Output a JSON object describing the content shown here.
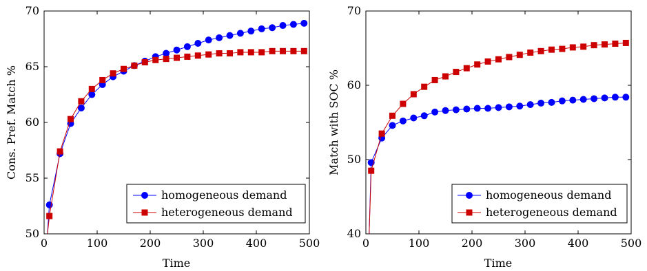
{
  "chart_data": [
    {
      "type": "line",
      "xlabel": "Time",
      "ylabel": "Cons. Pref. Match %",
      "xlim": [
        0,
        500
      ],
      "ylim": [
        50,
        70
      ],
      "xticks": [
        "0",
        "100",
        "200",
        "300",
        "400",
        "500"
      ],
      "yticks": [
        "50",
        "55",
        "60",
        "65",
        "70"
      ],
      "grid": false,
      "legend_position": "bottom-right",
      "series": [
        {
          "name": "homogeneous demand",
          "color": "#0000ff",
          "marker": "circle",
          "x": [
            10,
            30,
            50,
            70,
            90,
            110,
            130,
            150,
            170,
            190,
            210,
            230,
            250,
            270,
            290,
            310,
            330,
            350,
            370,
            390,
            410,
            430,
            450,
            470,
            490
          ],
          "y": [
            52.6,
            57.2,
            59.9,
            61.3,
            62.5,
            63.4,
            64.1,
            64.6,
            65.1,
            65.5,
            65.9,
            66.2,
            66.5,
            66.8,
            67.1,
            67.4,
            67.6,
            67.8,
            68.0,
            68.2,
            68.4,
            68.5,
            68.7,
            68.8,
            68.9
          ]
        },
        {
          "name": "heterogeneous demand",
          "color": "#cc0000",
          "marker": "square",
          "x": [
            10,
            30,
            50,
            70,
            90,
            110,
            130,
            150,
            170,
            190,
            210,
            230,
            250,
            270,
            290,
            310,
            330,
            350,
            370,
            390,
            410,
            430,
            450,
            470,
            490
          ],
          "y": [
            51.6,
            57.4,
            60.3,
            61.9,
            63.0,
            63.8,
            64.4,
            64.8,
            65.1,
            65.4,
            65.6,
            65.7,
            65.8,
            65.9,
            66.0,
            66.1,
            66.2,
            66.2,
            66.3,
            66.3,
            66.3,
            66.4,
            66.4,
            66.4,
            66.4
          ]
        }
      ]
    },
    {
      "type": "line",
      "xlabel": "Time",
      "ylabel": "Match with SOC %",
      "xlim": [
        0,
        500
      ],
      "ylim": [
        40,
        70
      ],
      "xticks": [
        "0",
        "100",
        "200",
        "300",
        "400",
        "500"
      ],
      "yticks": [
        "40",
        "50",
        "60",
        "70"
      ],
      "grid": false,
      "legend_position": "bottom-right",
      "series": [
        {
          "name": "homogeneous demand",
          "color": "#0000ff",
          "marker": "circle",
          "x": [
            10,
            30,
            50,
            70,
            90,
            110,
            130,
            150,
            170,
            190,
            210,
            230,
            250,
            270,
            290,
            310,
            330,
            350,
            370,
            390,
            410,
            430,
            450,
            470,
            490
          ],
          "y": [
            49.6,
            52.9,
            54.6,
            55.2,
            55.6,
            55.9,
            56.4,
            56.6,
            56.7,
            56.8,
            56.9,
            56.9,
            57.0,
            57.1,
            57.2,
            57.4,
            57.6,
            57.7,
            57.9,
            58.0,
            58.1,
            58.2,
            58.3,
            58.4,
            58.4
          ]
        },
        {
          "name": "heterogeneous demand",
          "color": "#cc0000",
          "marker": "square",
          "x": [
            10,
            30,
            50,
            70,
            90,
            110,
            130,
            150,
            170,
            190,
            210,
            230,
            250,
            270,
            290,
            310,
            330,
            350,
            370,
            390,
            410,
            430,
            450,
            470,
            490
          ],
          "y": [
            48.5,
            53.5,
            55.9,
            57.5,
            58.8,
            59.8,
            60.7,
            61.2,
            61.8,
            62.3,
            62.8,
            63.2,
            63.5,
            63.8,
            64.1,
            64.4,
            64.6,
            64.8,
            64.9,
            65.1,
            65.2,
            65.4,
            65.5,
            65.6,
            65.7
          ]
        }
      ]
    }
  ]
}
